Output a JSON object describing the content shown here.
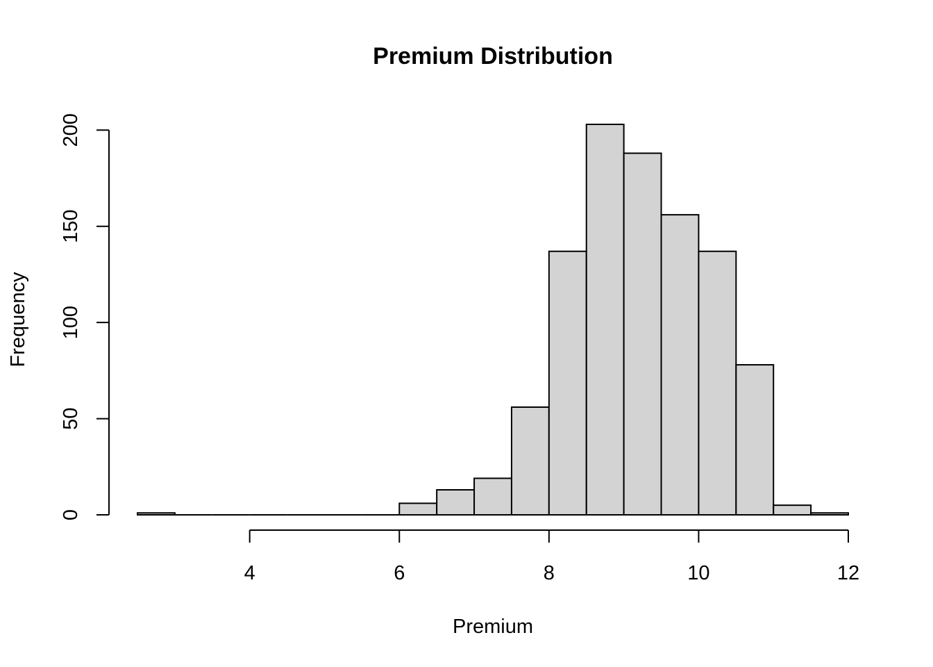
{
  "chart_data": {
    "type": "histogram",
    "title": "Premium Distribution",
    "xlabel": "Premium",
    "ylabel": "Frequency",
    "bar_color": "#d3d3d3",
    "border_color": "#000000",
    "bins": [
      {
        "start": 2.5,
        "end": 3.0,
        "count": 1
      },
      {
        "start": 3.0,
        "end": 3.5,
        "count": 0
      },
      {
        "start": 3.5,
        "end": 4.0,
        "count": 0
      },
      {
        "start": 4.0,
        "end": 4.5,
        "count": 0
      },
      {
        "start": 4.5,
        "end": 5.0,
        "count": 0
      },
      {
        "start": 5.0,
        "end": 5.5,
        "count": 0
      },
      {
        "start": 5.5,
        "end": 6.0,
        "count": 0
      },
      {
        "start": 6.0,
        "end": 6.5,
        "count": 6
      },
      {
        "start": 6.5,
        "end": 7.0,
        "count": 13
      },
      {
        "start": 7.0,
        "end": 7.5,
        "count": 19
      },
      {
        "start": 7.5,
        "end": 8.0,
        "count": 56
      },
      {
        "start": 8.0,
        "end": 8.5,
        "count": 137
      },
      {
        "start": 8.5,
        "end": 9.0,
        "count": 203
      },
      {
        "start": 9.0,
        "end": 9.5,
        "count": 188
      },
      {
        "start": 9.5,
        "end": 10.0,
        "count": 156
      },
      {
        "start": 10.0,
        "end": 10.5,
        "count": 137
      },
      {
        "start": 10.5,
        "end": 11.0,
        "count": 78
      },
      {
        "start": 11.0,
        "end": 11.5,
        "count": 5
      },
      {
        "start": 11.5,
        "end": 12.0,
        "count": 1
      }
    ],
    "x_ticks": [
      4,
      6,
      8,
      10,
      12
    ],
    "x_tick_labels": [
      "4",
      "6",
      "8",
      "10",
      "12"
    ],
    "y_ticks": [
      0,
      50,
      100,
      150,
      200
    ],
    "y_tick_labels": [
      "0",
      "50",
      "100",
      "150",
      "200"
    ],
    "xlim": [
      2.5,
      12
    ],
    "ylim": [
      0,
      203
    ],
    "grid": false,
    "legend": "none"
  }
}
